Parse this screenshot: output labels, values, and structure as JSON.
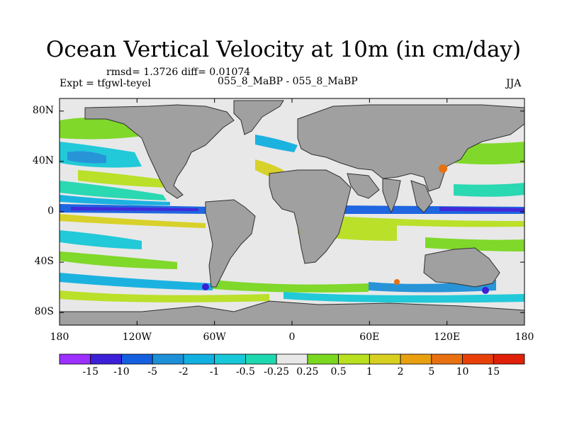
{
  "title": "Ocean Vertical Velocity at 10m (in cm/day)",
  "stats": "rmsd= 1.3726 diff= 0.01074",
  "experiment": "Expt = tfgwl-teyel",
  "cases": "055_8_MaBP - 055_8_MaBP",
  "season": "JJA",
  "lat_ticks": [
    {
      "label": "80N",
      "value": 80
    },
    {
      "label": "40N",
      "value": 40
    },
    {
      "label": "0",
      "value": 0
    },
    {
      "label": "40S",
      "value": -40
    },
    {
      "label": "80S",
      "value": -80
    }
  ],
  "lon_ticks": [
    {
      "label": "180",
      "value": -180
    },
    {
      "label": "120W",
      "value": -120
    },
    {
      "label": "60W",
      "value": -60
    },
    {
      "label": "0",
      "value": 0
    },
    {
      "label": "60E",
      "value": 60
    },
    {
      "label": "120E",
      "value": 120
    },
    {
      "label": "180",
      "value": 180
    }
  ],
  "colorbar": {
    "labels": [
      "-15",
      "-10",
      "-5",
      "-2",
      "-1",
      "-0.5",
      "-0.25",
      "0.25",
      "0.5",
      "1",
      "2",
      "5",
      "10",
      "15"
    ],
    "colors": [
      "#9b30ff",
      "#3b20d8",
      "#1560e0",
      "#1e90d8",
      "#12b0e0",
      "#18c8d8",
      "#20d8b0",
      "#e8e8e8",
      "#7ad820",
      "#b8e020",
      "#d8d020",
      "#e8a010",
      "#e87010",
      "#e84008",
      "#e02008"
    ]
  },
  "colors": {
    "land": "#a0a0a0",
    "ocean_neutral": "#e8e8e8"
  },
  "features": {
    "equatorial_upwelling_band": "-2 to -15",
    "land_mask": "continents"
  }
}
